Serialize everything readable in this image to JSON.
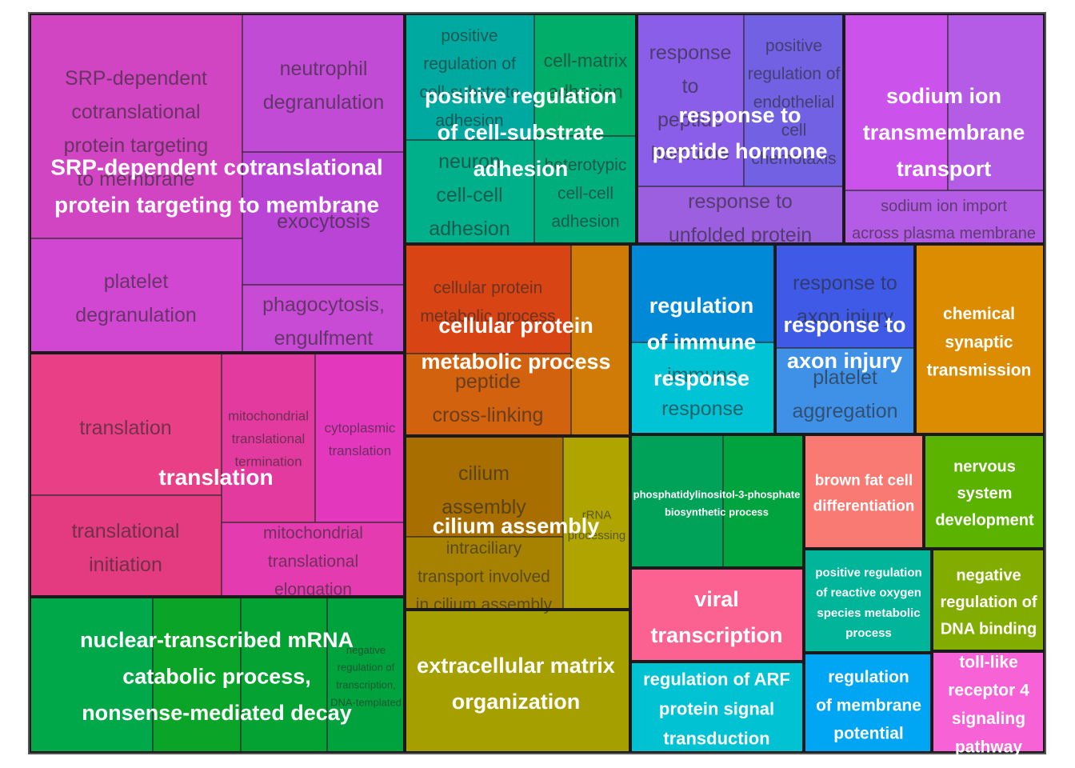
{
  "chart_data": {
    "type": "treemap",
    "groups": [
      {
        "label": "SRP-dependent cotranslational protein targeting to membrane",
        "color": "#C94CC3",
        "terms": [
          {
            "label": "SRP-dependent cotranslational protein targeting to membrane",
            "color": "#D144C2"
          },
          {
            "label": "neutrophil degranulation",
            "color": "#C14BD4"
          },
          {
            "label": "exocytosis",
            "color": "#B944D6"
          },
          {
            "label": "platelet degranulation",
            "color": "#D147D2"
          },
          {
            "label": "phagocytosis, engulfment",
            "color": "#C84BD6"
          }
        ]
      },
      {
        "label": "positive regulation of cell-substrate adhesion",
        "color": "#00AE8C",
        "terms": [
          {
            "label": "positive regulation of cell-substrate adhesion",
            "color": "#00A9A0"
          },
          {
            "label": "cell-matrix adhesion",
            "color": "#00AE69"
          },
          {
            "label": "neuron cell-cell adhesion",
            "color": "#00B08B"
          },
          {
            "label": "heterotypic cell-cell adhesion",
            "color": "#00AE7C"
          }
        ]
      },
      {
        "label": "response to peptide hormone",
        "color": "#8460E2",
        "terms": [
          {
            "label": "response to peptide hormone",
            "color": "#8A5EE8"
          },
          {
            "label": "positive regulation of endothelial cell chemotaxis",
            "color": "#7361E4"
          },
          {
            "label": "response to unfolded protein",
            "color": "#9B5FE0"
          }
        ]
      },
      {
        "label": "sodium ion transmembrane transport",
        "color": "#C551EA",
        "terms": [
          {
            "label": "sodium ion transmembrane transport",
            "color": "#CB53EC"
          },
          {
            "label": "sodium ion import across plasma membrane",
            "color": "#B55CE6"
          }
        ]
      },
      {
        "label": "translation",
        "color": "#E63E94",
        "terms": [
          {
            "label": "translation",
            "color": "#E93F86"
          },
          {
            "label": "mitochondrial translational termination",
            "color": "#E23A9E"
          },
          {
            "label": "cytoplasmic translation",
            "color": "#E337BD"
          },
          {
            "label": "translational initiation",
            "color": "#E43B80"
          },
          {
            "label": "mitochondrial translational elongation",
            "color": "#E43CB0"
          }
        ]
      },
      {
        "label": "cellular protein metabolic process",
        "color": "#D2500E",
        "terms": [
          {
            "label": "cellular protein metabolic process",
            "color": "#D94414"
          },
          {
            "label": "peptide cross-linking",
            "color": "#D3620F"
          },
          {
            "label": "",
            "color": "#D07A08"
          }
        ]
      },
      {
        "label": "regulation of immune response",
        "color": "#00B2CE",
        "terms": [
          {
            "label": "regulation of immune response",
            "color": "#0089D6"
          },
          {
            "label": "immune response",
            "color": "#00C4D6"
          }
        ]
      },
      {
        "label": "response to axon injury",
        "color": "#3F7CE8",
        "terms": [
          {
            "label": "response to axon injury",
            "color": "#3F5AE6"
          },
          {
            "label": "platelet aggregation",
            "color": "#3F91E8"
          }
        ]
      },
      {
        "label": "chemical synaptic transmission",
        "color": "#DB8C00",
        "terms": [
          {
            "label": "chemical synaptic transmission",
            "color": "#DB8C00"
          }
        ]
      },
      {
        "label": "nuclear-transcribed mRNA catabolic process, nonsense-mediated decay",
        "color": "#05A23A",
        "terms": [
          {
            "label": "nuclear-transcribed mRNA catabolic process, nonsense-mediated decay",
            "color": "#00A84A"
          },
          {
            "label": "",
            "color": "#0AA428"
          },
          {
            "label": "",
            "color": "#04A232"
          },
          {
            "label": "negative regulation of transcription, DNA-templated",
            "color": "#00A23E"
          }
        ]
      },
      {
        "label": "cilium assembly",
        "color": "#A88400",
        "terms": [
          {
            "label": "cilium assembly",
            "color": "#A86E00"
          },
          {
            "label": "intraciliary transport involved in cilium assembly",
            "color": "#A78200"
          },
          {
            "label": "rRNA processing",
            "color": "#AFA400"
          }
        ]
      },
      {
        "label": "extracellular matrix organization",
        "color": "#A5A000",
        "terms": [
          {
            "label": "extracellular matrix organization",
            "color": "#A5A000"
          }
        ]
      },
      {
        "label": "phosphatidylinositol-3-phosphate biosynthetic process",
        "color": "#00A546",
        "terms": [
          {
            "label": "phosphatidylinositol-3-phosphate biosynthetic process",
            "color": "#00A25A"
          },
          {
            "label": "",
            "color": "#00A43E"
          }
        ]
      },
      {
        "label": "viral transcription",
        "color": "#FB6292",
        "terms": [
          {
            "label": "viral transcription",
            "color": "#FB6292"
          }
        ]
      },
      {
        "label": "regulation of ARF protein signal transduction",
        "color": "#00C2D3",
        "terms": [
          {
            "label": "regulation of ARF protein signal transduction",
            "color": "#00C2D3"
          }
        ]
      },
      {
        "label": "brown fat cell differentiation",
        "color": "#F87A73",
        "terms": [
          {
            "label": "brown fat cell differentiation",
            "color": "#F87A73"
          }
        ]
      },
      {
        "label": "nervous system development",
        "color": "#5BB300",
        "terms": [
          {
            "label": "nervous system development",
            "color": "#5BB300"
          }
        ]
      },
      {
        "label": "positive regulation of reactive oxygen species metabolic process",
        "color": "#00B599",
        "terms": [
          {
            "label": "positive regulation of reactive oxygen species metabolic process",
            "color": "#00B599"
          }
        ]
      },
      {
        "label": "negative regulation of DNA binding",
        "color": "#82AD00",
        "terms": [
          {
            "label": "negative regulation of DNA binding",
            "color": "#82AD00"
          }
        ]
      },
      {
        "label": "regulation of membrane potential",
        "color": "#00A6F4",
        "terms": [
          {
            "label": "regulation of membrane potential",
            "color": "#00A6F4"
          }
        ]
      },
      {
        "label": "toll-like receptor 4 signaling pathway",
        "color": "#F762D7",
        "terms": [
          {
            "label": "toll-like receptor 4 signaling pathway",
            "color": "#F762D7"
          }
        ]
      }
    ]
  }
}
